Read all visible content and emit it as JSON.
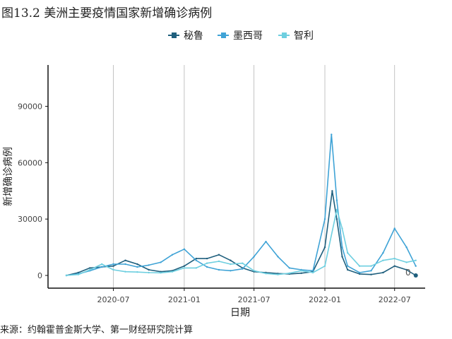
{
  "figure": {
    "title": "图13.2 美洲主要疫情国家新增确诊病例",
    "source": "来源：约翰霍普金斯大学、第一财经研究院计算"
  },
  "chart_data": {
    "type": "line",
    "xlabel": "日期",
    "ylabel": "新增确诊病例",
    "x_range": [
      "2020-03-01",
      "2022-08-31"
    ],
    "ylim": [
      -5000,
      112000
    ],
    "x_ticks": [
      "2020-07-01",
      "2021-01-01",
      "2021-07-01",
      "2022-01-01",
      "2022-07-01"
    ],
    "x_tick_labels": [
      "2020-07",
      "2021-01",
      "2021-07",
      "2022-01",
      "2022-07"
    ],
    "y_ticks": [
      0,
      30000,
      60000,
      90000
    ],
    "y_tick_labels": [
      "0",
      "30000",
      "60000",
      "90000"
    ],
    "grid": "vertical lines at x ticks",
    "legend_position": "top",
    "end_label": "0",
    "series": [
      {
        "name": "秘鲁",
        "color": "#1f5f7d",
        "points": [
          [
            "2020-03-01",
            0
          ],
          [
            "2020-04-01",
            1500
          ],
          [
            "2020-05-01",
            4000
          ],
          [
            "2020-06-01",
            4500
          ],
          [
            "2020-07-01",
            5000
          ],
          [
            "2020-08-01",
            8000
          ],
          [
            "2020-09-01",
            6000
          ],
          [
            "2020-10-01",
            3000
          ],
          [
            "2020-11-01",
            2000
          ],
          [
            "2020-12-01",
            2500
          ],
          [
            "2021-01-01",
            5000
          ],
          [
            "2021-02-01",
            9000
          ],
          [
            "2021-03-01",
            9000
          ],
          [
            "2021-04-01",
            11000
          ],
          [
            "2021-05-01",
            8000
          ],
          [
            "2021-06-01",
            4000
          ],
          [
            "2021-07-01",
            2000
          ],
          [
            "2021-08-01",
            1500
          ],
          [
            "2021-09-01",
            1000
          ],
          [
            "2021-10-01",
            800
          ],
          [
            "2021-11-01",
            1200
          ],
          [
            "2021-12-01",
            2000
          ],
          [
            "2022-01-01",
            15000
          ],
          [
            "2022-01-20",
            45000
          ],
          [
            "2022-02-01",
            30000
          ],
          [
            "2022-02-15",
            10000
          ],
          [
            "2022-03-01",
            3000
          ],
          [
            "2022-04-01",
            800
          ],
          [
            "2022-05-01",
            500
          ],
          [
            "2022-06-01",
            1500
          ],
          [
            "2022-07-01",
            5000
          ],
          [
            "2022-08-01",
            3000
          ],
          [
            "2022-08-25",
            0
          ]
        ]
      },
      {
        "name": "墨西哥",
        "color": "#3fa3d6",
        "points": [
          [
            "2020-03-01",
            0
          ],
          [
            "2020-04-01",
            800
          ],
          [
            "2020-05-01",
            2500
          ],
          [
            "2020-06-01",
            4500
          ],
          [
            "2020-07-01",
            6000
          ],
          [
            "2020-08-01",
            6000
          ],
          [
            "2020-09-01",
            4500
          ],
          [
            "2020-10-01",
            5500
          ],
          [
            "2020-11-01",
            7000
          ],
          [
            "2020-12-01",
            11000
          ],
          [
            "2021-01-01",
            14000
          ],
          [
            "2021-02-01",
            8000
          ],
          [
            "2021-03-01",
            4500
          ],
          [
            "2021-04-01",
            3000
          ],
          [
            "2021-05-01",
            2500
          ],
          [
            "2021-06-01",
            3500
          ],
          [
            "2021-07-01",
            10000
          ],
          [
            "2021-08-01",
            18000
          ],
          [
            "2021-09-01",
            10000
          ],
          [
            "2021-10-01",
            4000
          ],
          [
            "2021-11-01",
            3000
          ],
          [
            "2021-12-01",
            2500
          ],
          [
            "2022-01-01",
            30000
          ],
          [
            "2022-01-18",
            75000
          ],
          [
            "2022-02-01",
            40000
          ],
          [
            "2022-02-15",
            15000
          ],
          [
            "2022-03-01",
            5000
          ],
          [
            "2022-04-01",
            1500
          ],
          [
            "2022-05-01",
            2500
          ],
          [
            "2022-06-01",
            12000
          ],
          [
            "2022-07-01",
            25000
          ],
          [
            "2022-08-01",
            15000
          ],
          [
            "2022-08-25",
            5000
          ]
        ]
      },
      {
        "name": "智利",
        "color": "#6ecfe0",
        "points": [
          [
            "2020-03-01",
            0
          ],
          [
            "2020-04-01",
            500
          ],
          [
            "2020-05-01",
            3000
          ],
          [
            "2020-06-01",
            6000
          ],
          [
            "2020-07-01",
            3000
          ],
          [
            "2020-08-01",
            2000
          ],
          [
            "2020-09-01",
            1800
          ],
          [
            "2020-10-01",
            1500
          ],
          [
            "2020-11-01",
            1400
          ],
          [
            "2020-12-01",
            2000
          ],
          [
            "2021-01-01",
            4000
          ],
          [
            "2021-02-01",
            4000
          ],
          [
            "2021-03-01",
            6500
          ],
          [
            "2021-04-01",
            7500
          ],
          [
            "2021-05-01",
            6000
          ],
          [
            "2021-06-01",
            6500
          ],
          [
            "2021-07-01",
            2500
          ],
          [
            "2021-08-01",
            1000
          ],
          [
            "2021-09-01",
            500
          ],
          [
            "2021-10-01",
            1200
          ],
          [
            "2021-11-01",
            2500
          ],
          [
            "2021-12-01",
            1500
          ],
          [
            "2022-01-01",
            5000
          ],
          [
            "2022-02-01",
            35000
          ],
          [
            "2022-02-15",
            25000
          ],
          [
            "2022-03-01",
            12000
          ],
          [
            "2022-04-01",
            5000
          ],
          [
            "2022-05-01",
            5000
          ],
          [
            "2022-06-01",
            8000
          ],
          [
            "2022-07-01",
            9000
          ],
          [
            "2022-08-01",
            7000
          ],
          [
            "2022-08-25",
            8000
          ]
        ]
      }
    ]
  }
}
